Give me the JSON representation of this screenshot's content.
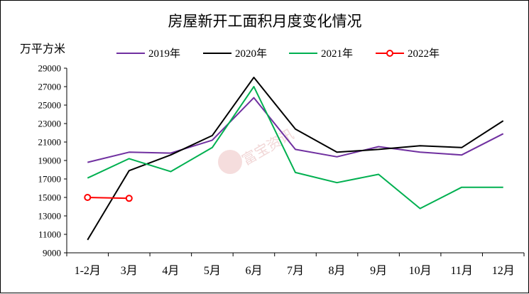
{
  "chart_data": {
    "type": "line",
    "title": "房屋新开工面积月度变化情况",
    "ylabel": "万平方米",
    "xlabel": "",
    "categories": [
      "1-2月",
      "3月",
      "4月",
      "5月",
      "6月",
      "7月",
      "8月",
      "9月",
      "10月",
      "11月",
      "12月"
    ],
    "ylim": [
      9000,
      29000
    ],
    "yticks": [
      9000,
      11000,
      13000,
      15000,
      17000,
      19000,
      21000,
      23000,
      25000,
      27000,
      29000
    ],
    "legend_position": "top",
    "grid": false,
    "series": [
      {
        "name": "2019年",
        "color": "#7030a0",
        "marker": "none",
        "values": [
          18800,
          19900,
          19800,
          21200,
          25800,
          20200,
          19400,
          20500,
          19900,
          19600,
          21900
        ]
      },
      {
        "name": "2020年",
        "color": "#000000",
        "marker": "none",
        "values": [
          10400,
          17900,
          19600,
          21700,
          28000,
          22400,
          19900,
          20200,
          20600,
          20400,
          23300
        ]
      },
      {
        "name": "2021年",
        "color": "#00b050",
        "marker": "none",
        "values": [
          17100,
          19200,
          17800,
          20400,
          27000,
          17700,
          16600,
          17500,
          13800,
          16100,
          16100
        ]
      },
      {
        "name": "2022年",
        "color": "#ff0000",
        "marker": "circle",
        "values": [
          15000,
          14900,
          null,
          null,
          null,
          null,
          null,
          null,
          null,
          null,
          null
        ]
      }
    ],
    "watermark": "富宝资讯"
  }
}
